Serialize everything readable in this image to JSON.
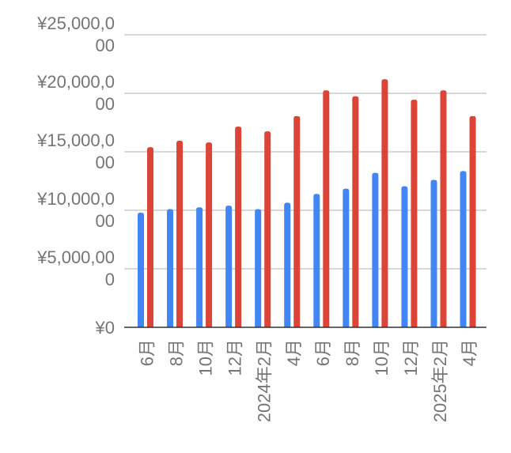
{
  "chart_data": {
    "type": "bar",
    "title": "",
    "xlabel": "",
    "ylabel": "",
    "ylim": [
      0,
      25000000
    ],
    "grid": true,
    "legend": "none",
    "y_ticks": [
      {
        "value": 0,
        "label": [
          "¥0"
        ]
      },
      {
        "value": 5000000,
        "label": [
          "¥5,000,00",
          "0"
        ]
      },
      {
        "value": 10000000,
        "label": [
          "¥10,000,0",
          "00"
        ]
      },
      {
        "value": 15000000,
        "label": [
          "¥15,000,0",
          "00"
        ]
      },
      {
        "value": 20000000,
        "label": [
          "¥20,000,0",
          "00"
        ]
      },
      {
        "value": 25000000,
        "label": [
          "¥25,000,0",
          "00"
        ]
      }
    ],
    "categories": [
      "6月",
      "8月",
      "10月",
      "12月",
      "2024年2月",
      "4月",
      "6月",
      "8月",
      "10月",
      "12月",
      "2025年2月",
      "4月"
    ],
    "series": [
      {
        "color": "#4285f4",
        "values": [
          9800000,
          10100000,
          10250000,
          10400000,
          10100000,
          10650000,
          11400000,
          11850000,
          13200000,
          12050000,
          12600000,
          13350000
        ]
      },
      {
        "color": "#db4437",
        "values": [
          15400000,
          15950000,
          15800000,
          17150000,
          16750000,
          18050000,
          20250000,
          19750000,
          21200000,
          19450000,
          20250000,
          18050000
        ]
      }
    ]
  }
}
